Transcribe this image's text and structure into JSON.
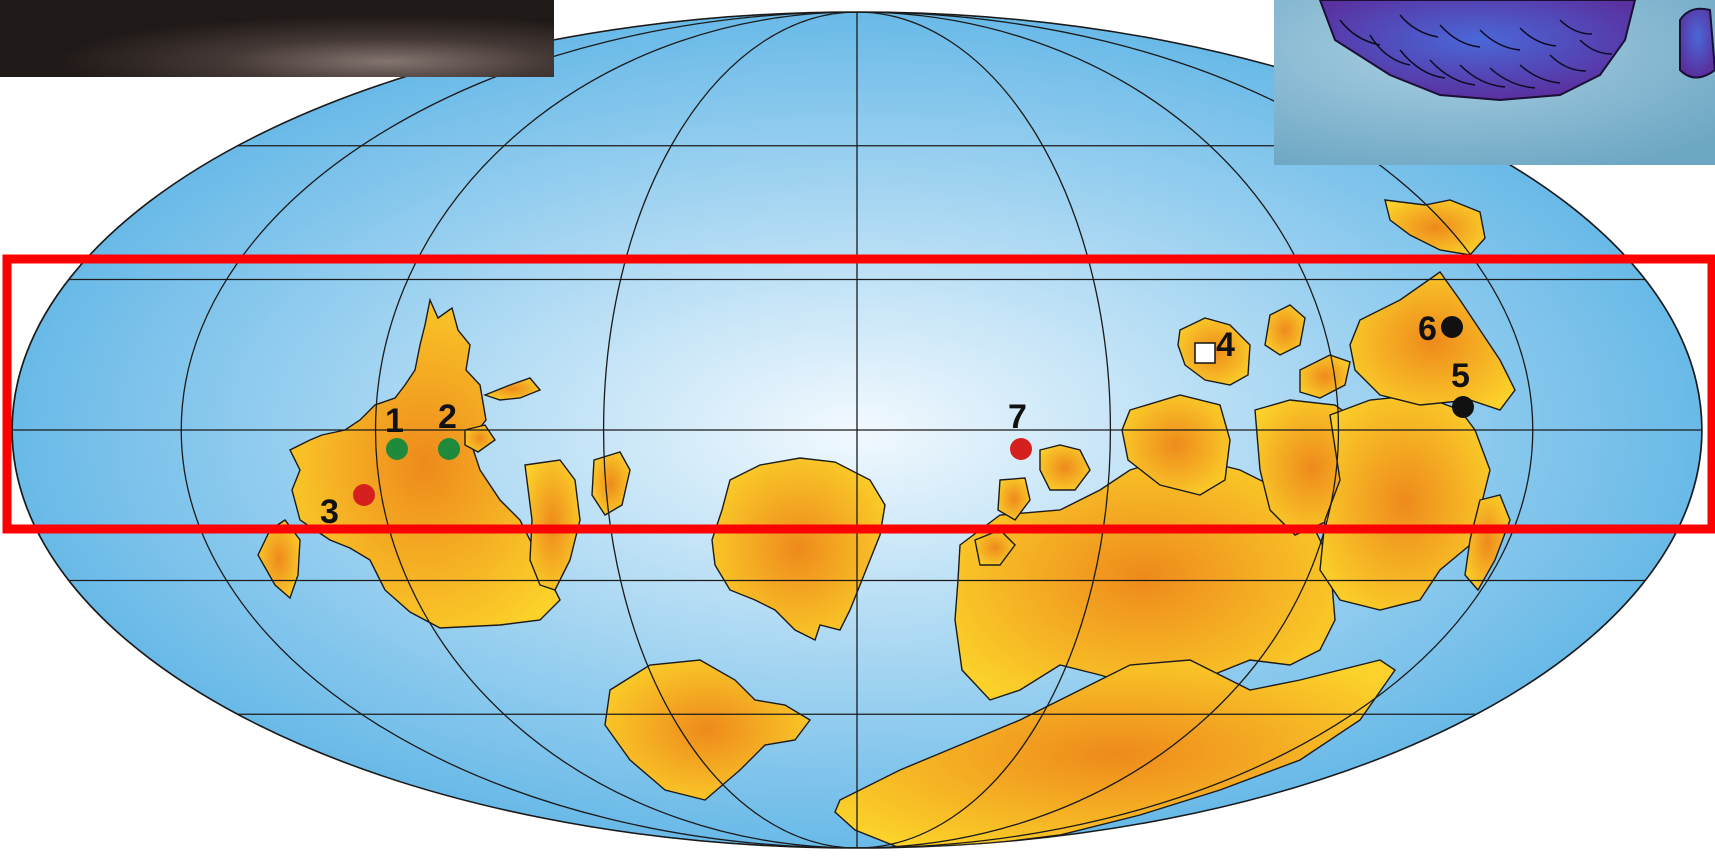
{
  "map": {
    "projection": "mollweide",
    "ocean_color": "#5bb3e6",
    "ocean_center_color": "#f2f9fe",
    "land_color_center": "#ee8a1c",
    "land_color_edge": "#fbd12a",
    "grid_color": "#1b1b1b",
    "highlight_box_color": "#ff0000"
  },
  "sites": [
    {
      "label": "1",
      "color": "#1f8a3c"
    },
    {
      "label": "2",
      "color": "#1f8a3c"
    },
    {
      "label": "3",
      "color": "#d62020"
    },
    {
      "label": "4",
      "color": "#ffffff",
      "shape": "square"
    },
    {
      "label": "5",
      "color": "#111111"
    },
    {
      "label": "6",
      "color": "#111111"
    },
    {
      "label": "7",
      "color": "#d62020"
    }
  ],
  "photos": [
    {
      "name": "rock-surface-photo"
    },
    {
      "name": "fossil-scales-illustration"
    }
  ]
}
